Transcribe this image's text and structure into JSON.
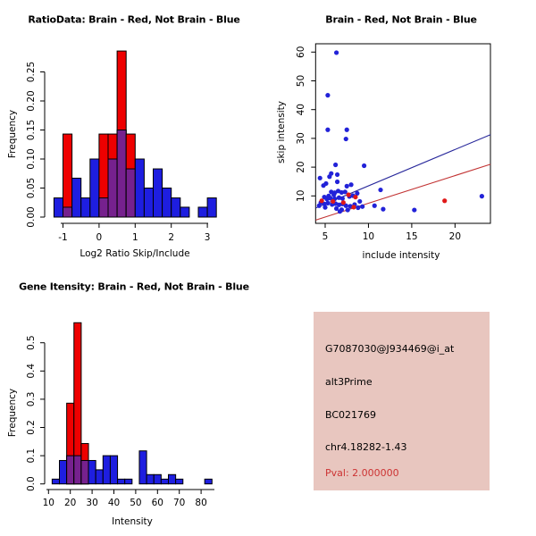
{
  "page": {
    "background": "#ffffff"
  },
  "colors": {
    "hist_blue": "#1e1ee0",
    "hist_red": "#ee0000",
    "overlap_purple": "#76218e",
    "point_blue": "#2222d8",
    "point_red": "#e01818",
    "line_blue": "#28289b",
    "line_red": "#c23333",
    "axis": "#000000",
    "info_bg": "#e8c6bf",
    "info_text": "#000000",
    "info_pval": "#cc3333"
  },
  "chart_data": [
    {
      "id": "ratio_hist",
      "type": "bar",
      "subtype": "overlaid-histogram",
      "title": "RatioData: Brain - Red, Not Brain - Blue",
      "xlabel": "Log2 Ratio Skip/Include",
      "ylabel": "Frequency",
      "bin_start": -1.25,
      "bin_width": 0.25,
      "xticks": [
        -1,
        0,
        1,
        2,
        3
      ],
      "xtick_labels": [
        "-1",
        "0",
        "1",
        "2",
        "3"
      ],
      "yticks": [
        0,
        0.05,
        0.1,
        0.15,
        0.2,
        0.25
      ],
      "ytick_labels": [
        "0.00",
        "0.05",
        "0.10",
        "0.15",
        "0.20",
        "0.25"
      ],
      "ylim": [
        0,
        0.29
      ],
      "legend": [
        {
          "name": "Brain",
          "color_key": "hist_red"
        },
        {
          "name": "Not Brain",
          "color_key": "hist_blue"
        }
      ],
      "series": [
        {
          "name": "Not Brain (blue)",
          "color_key": "hist_blue",
          "values": [
            0.033,
            0.017,
            0.067,
            0.033,
            0.1,
            0.033,
            0.1,
            0.15,
            0.083,
            0.1,
            0.05,
            0.083,
            0.05,
            0.033,
            0.017,
            0,
            0.017,
            0.033
          ]
        },
        {
          "name": "Brain (red)",
          "color_key": "hist_red",
          "values": [
            0,
            0.143,
            0,
            0,
            0,
            0.143,
            0.143,
            0.286,
            0.143,
            0,
            0,
            0,
            0,
            0,
            0,
            0,
            0,
            0
          ]
        }
      ]
    },
    {
      "id": "scatter",
      "type": "scatter",
      "title": "Brain - Red, Not Brain - Blue",
      "xlabel": "include intensity",
      "ylabel": "skip intensity",
      "xlim": [
        3.9,
        24.1
      ],
      "ylim": [
        0.5,
        62.9
      ],
      "xticks": [
        5,
        10,
        15,
        20
      ],
      "xtick_labels": [
        "5",
        "10",
        "15",
        "20"
      ],
      "yticks": [
        10,
        20,
        30,
        40,
        50,
        60
      ],
      "ytick_labels": [
        "10",
        "20",
        "30",
        "40",
        "50",
        "60"
      ],
      "series": [
        {
          "name": "Not Brain (blue)",
          "color_key": "point_blue",
          "points": [
            [
              6.3,
              59.8
            ],
            [
              5.3,
              45.0
            ],
            [
              5.3,
              33.0
            ],
            [
              7.5,
              33.0
            ],
            [
              7.4,
              29.8
            ],
            [
              6.2,
              20.8
            ],
            [
              9.5,
              20.5
            ],
            [
              6.4,
              17.4
            ],
            [
              4.4,
              16.2
            ],
            [
              5.5,
              16.7
            ],
            [
              5.7,
              17.8
            ],
            [
              4.8,
              13.6
            ],
            [
              5.1,
              14.3
            ],
            [
              6.4,
              14.9
            ],
            [
              7.5,
              13.4
            ],
            [
              8.0,
              13.9
            ],
            [
              11.4,
              12.1
            ],
            [
              5.7,
              11.4
            ],
            [
              6.1,
              11.1
            ],
            [
              6.5,
              11.7
            ],
            [
              6.9,
              11.2
            ],
            [
              7.3,
              11.4
            ],
            [
              8.7,
              10.9
            ],
            [
              6.0,
              10.4
            ],
            [
              5.4,
              10.0
            ],
            [
              4.9,
              9.6
            ],
            [
              5.2,
              8.9
            ],
            [
              5.6,
              9.2
            ],
            [
              6.1,
              9.0
            ],
            [
              6.6,
              9.4
            ],
            [
              7.0,
              9.1
            ],
            [
              7.8,
              9.8
            ],
            [
              8.2,
              10.1
            ],
            [
              4.5,
              7.7
            ],
            [
              4.9,
              7.2
            ],
            [
              5.3,
              7.5
            ],
            [
              5.8,
              7.0
            ],
            [
              6.2,
              7.3
            ],
            [
              6.6,
              6.9
            ],
            [
              7.0,
              7.2
            ],
            [
              7.4,
              6.6
            ],
            [
              7.9,
              6.4
            ],
            [
              8.4,
              7.0
            ],
            [
              6.3,
              5.6
            ],
            [
              6.9,
              5.2
            ],
            [
              7.6,
              5.1
            ],
            [
              8.8,
              5.9
            ],
            [
              9.3,
              6.3
            ],
            [
              10.7,
              6.6
            ],
            [
              11.7,
              5.4
            ],
            [
              15.3,
              5.1
            ],
            [
              23.1,
              9.9
            ],
            [
              5.0,
              6.0
            ],
            [
              4.3,
              6.6
            ],
            [
              9.0,
              8.1
            ],
            [
              6.7,
              4.6
            ]
          ]
        },
        {
          "name": "Brain (red)",
          "color_key": "point_red",
          "points": [
            [
              4.6,
              8.3
            ],
            [
              5.9,
              8.1
            ],
            [
              7.1,
              7.7
            ],
            [
              7.7,
              10.4
            ],
            [
              8.5,
              9.6
            ],
            [
              8.3,
              6.1
            ],
            [
              18.8,
              8.3
            ]
          ]
        }
      ],
      "lines": [
        {
          "name": "blue fit",
          "color_key": "line_blue",
          "x1": 3.9,
          "y1": 5.8,
          "x2": 24.1,
          "y2": 31.3
        },
        {
          "name": "red fit",
          "color_key": "line_red",
          "x1": 3.9,
          "y1": 1.6,
          "x2": 24.1,
          "y2": 21.0
        }
      ]
    },
    {
      "id": "gene_hist",
      "type": "bar",
      "subtype": "overlaid-histogram",
      "title": "Gene Itensity: Brain - Red, Not Brain - Blue",
      "xlabel": "Intensity",
      "ylabel": "Frequency",
      "bin_start": 11.667,
      "bin_width": 3.3333,
      "xticks": [
        10,
        20,
        30,
        40,
        50,
        60,
        70,
        80
      ],
      "xtick_labels": [
        "10",
        "20",
        "30",
        "40",
        "50",
        "60",
        "70",
        "80"
      ],
      "yticks": [
        0,
        0.1,
        0.2,
        0.3,
        0.4,
        0.5
      ],
      "ytick_labels": [
        "0.0",
        "0.1",
        "0.2",
        "0.3",
        "0.4",
        "0.5"
      ],
      "ylim": [
        0,
        0.59
      ],
      "series": [
        {
          "name": "Not Brain (blue)",
          "color_key": "hist_blue",
          "values": [
            0.017,
            0.083,
            0.1,
            0.1,
            0.083,
            0.083,
            0.05,
            0.1,
            0.1,
            0.017,
            0.017,
            0,
            0.117,
            0.033,
            0.033,
            0.017,
            0.033,
            0.017,
            0,
            0,
            0,
            0.017
          ]
        },
        {
          "name": "Brain (red)",
          "color_key": "hist_red",
          "values": [
            0,
            0,
            0.286,
            0.571,
            0.143,
            0,
            0,
            0,
            0,
            0,
            0,
            0,
            0,
            0,
            0,
            0,
            0,
            0,
            0,
            0,
            0,
            0
          ]
        }
      ]
    }
  ],
  "info_box": {
    "lines": [
      {
        "text": "G7087030@J934469@i_at",
        "color_key": "info_text"
      },
      {
        "text": "alt3Prime",
        "color_key": "info_text"
      },
      {
        "text": "BC021769",
        "color_key": "info_text"
      },
      {
        "text": "chr4.18282-1.43",
        "color_key": "info_text"
      },
      {
        "text": "Pval: 2.000000",
        "color_key": "info_pval"
      }
    ]
  }
}
